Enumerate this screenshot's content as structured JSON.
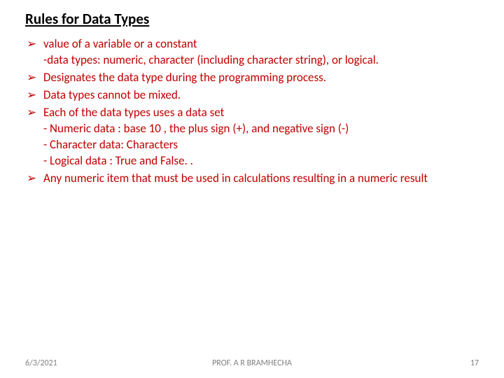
{
  "slide": {
    "title": "Rules for Data Types",
    "bullet_glyph": "➢",
    "text_color": "#c00000",
    "items": [
      {
        "text": "value of a variable or a constant",
        "subs": [
          "-data types: numeric, character (including character string), or logical."
        ]
      },
      {
        "text": "Designates the data type during the programming process."
      },
      {
        "text": " Data types cannot be mixed."
      },
      {
        "text": "Each of the data types uses a data set",
        "subs": [
          "- Numeric data :  base 10 , the plus sign (+), and negative sign (-)",
          "- Character data:  Characters",
          "- Logical data : True and False. ."
        ]
      },
      {
        "text": " Any numeric item that must be used in calculations resulting in a numeric result"
      }
    ]
  },
  "footer": {
    "date": "6/3/2021",
    "author": "PROF. A R BRAMHECHA",
    "page": "17"
  }
}
